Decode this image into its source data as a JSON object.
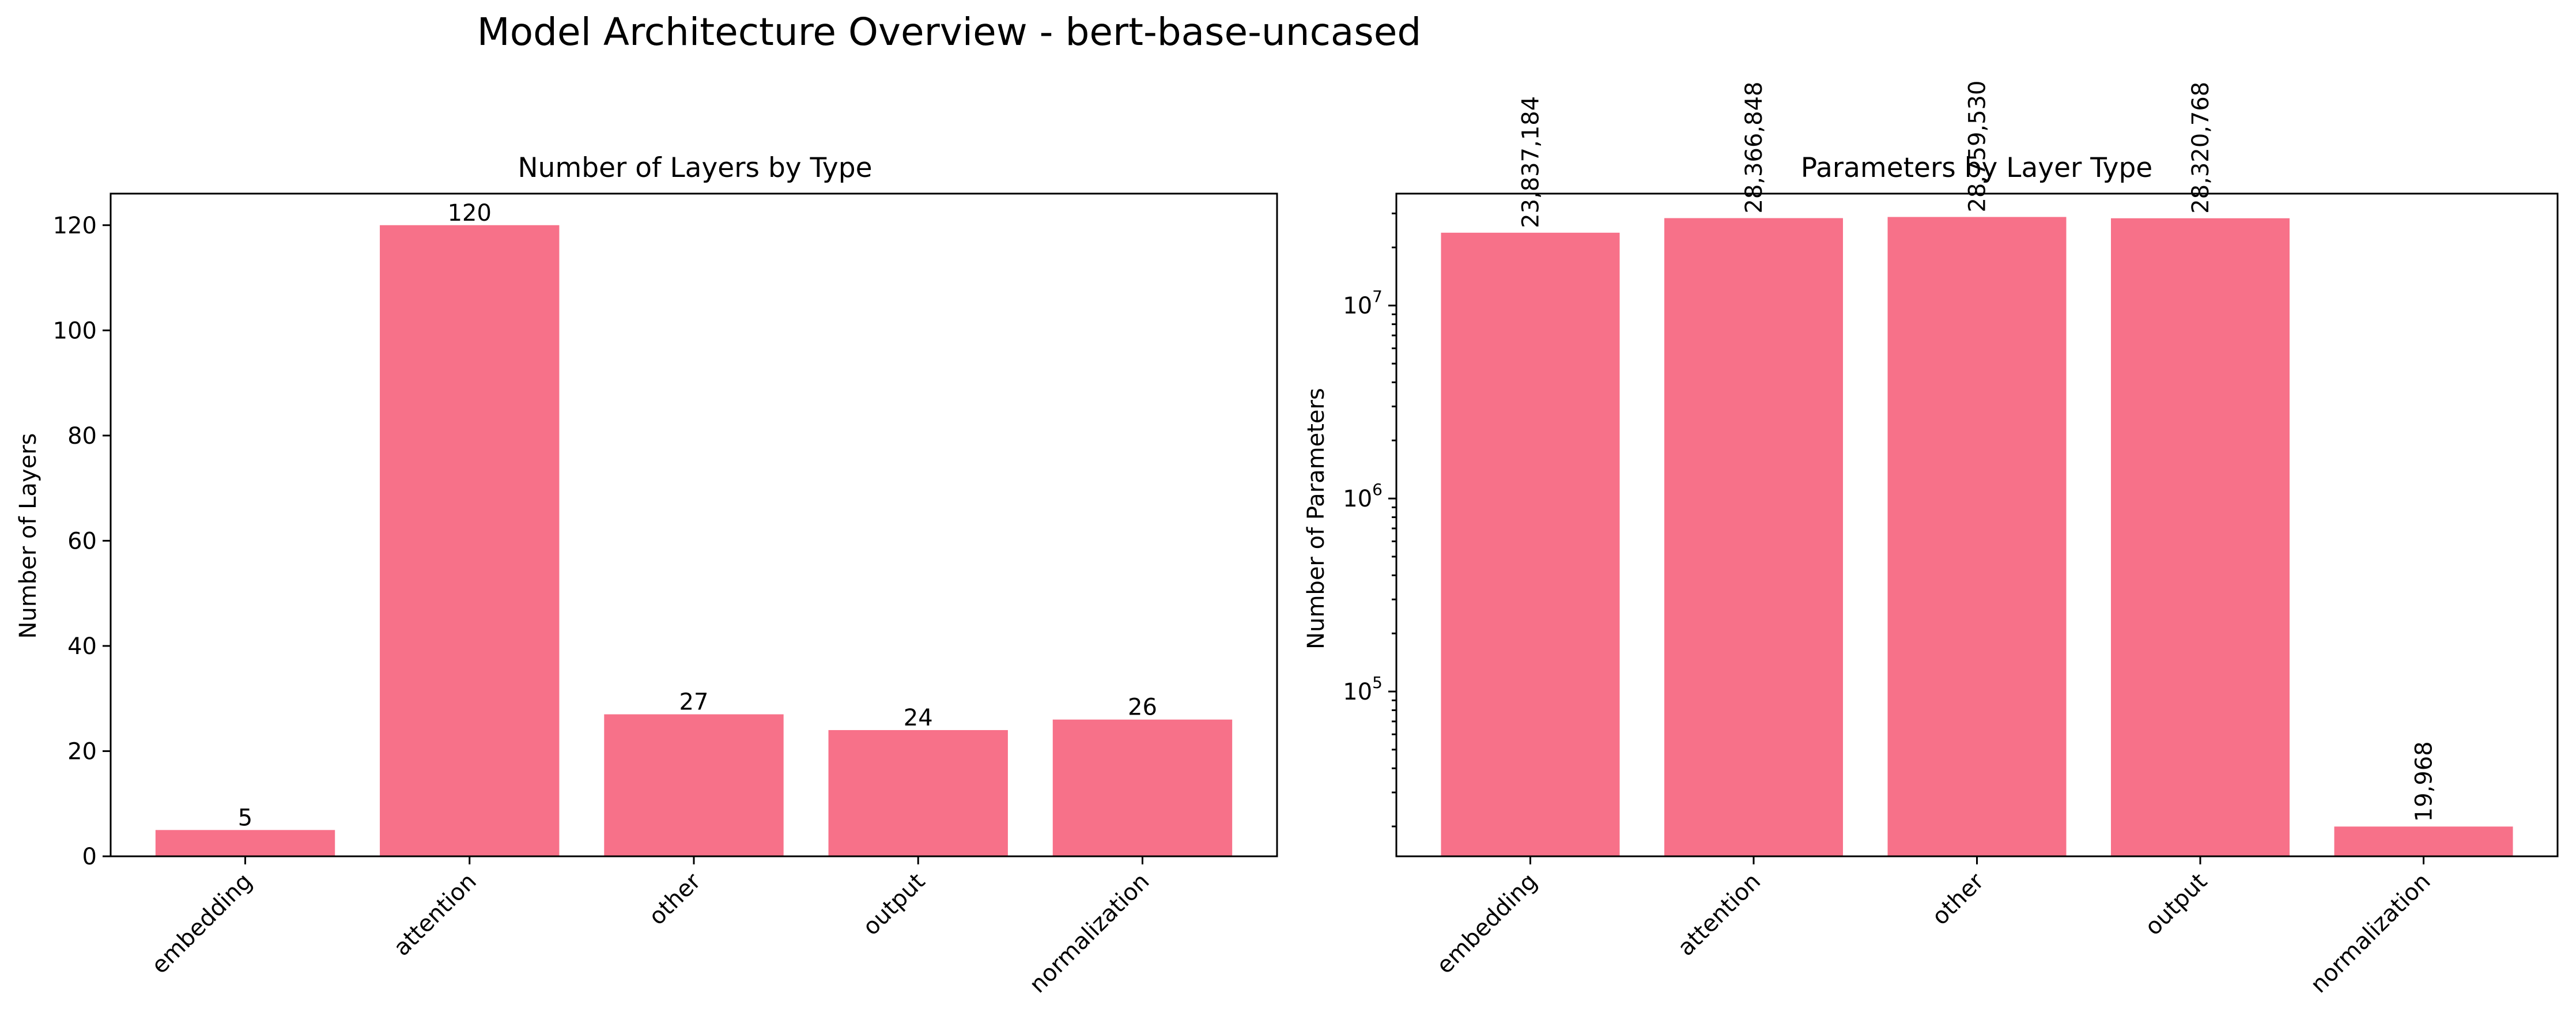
{
  "suptitle": "Model Architecture Overview - bert-base-uncased",
  "bar_color": "#f77189",
  "chart_data": [
    {
      "type": "bar",
      "title": "Number of Layers by Type",
      "xlabel": "",
      "ylabel": "Number of Layers",
      "categories": [
        "embedding",
        "attention",
        "other",
        "output",
        "normalization"
      ],
      "values": [
        5,
        120,
        27,
        24,
        26
      ],
      "value_labels": [
        "5",
        "120",
        "27",
        "24",
        "26"
      ],
      "yscale": "linear",
      "ylim": [
        0,
        126
      ],
      "yticks": [
        0,
        20,
        40,
        60,
        80,
        100,
        120
      ],
      "ytick_labels": [
        "0",
        "20",
        "40",
        "60",
        "80",
        "100",
        "120"
      ],
      "grid": false,
      "legend": "none"
    },
    {
      "type": "bar",
      "title": "Parameters by Layer Type",
      "xlabel": "",
      "ylabel": "Number of Parameters",
      "categories": [
        "embedding",
        "attention",
        "other",
        "output",
        "normalization"
      ],
      "values": [
        23837184,
        28366848,
        28759530,
        28320768,
        19968
      ],
      "value_labels": [
        "23,837,184",
        "28,366,848",
        "28,759,530",
        "28,320,768",
        "19,968"
      ],
      "yscale": "log",
      "ylim": [
        14000,
        38000000
      ],
      "yticks": [
        100000,
        1000000,
        10000000
      ],
      "ytick_labels": [
        "10^5",
        "10^6",
        "10^7"
      ],
      "grid": false,
      "legend": "none"
    }
  ]
}
